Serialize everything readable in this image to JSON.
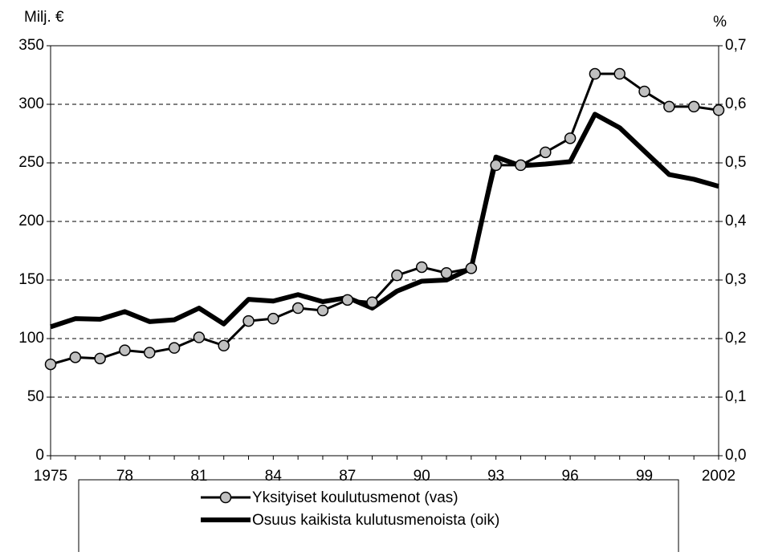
{
  "chart_data": {
    "type": "line",
    "y_label": "Milj. €",
    "y2_label": "%",
    "categories": [
      "1975",
      null,
      null,
      "78",
      null,
      null,
      "81",
      null,
      null,
      "84",
      null,
      null,
      "87",
      null,
      null,
      "90",
      null,
      null,
      "93",
      null,
      null,
      "96",
      null,
      null,
      "99",
      null,
      null,
      "2002"
    ],
    "series": [
      {
        "name": "Yksityiset koulutusmenot (vas)",
        "color": "#000000",
        "marker_color": "#c0c0c0",
        "axis": "y",
        "values": [
          78,
          84,
          83,
          90,
          88,
          92,
          101,
          94,
          115,
          117,
          126,
          124,
          133,
          131,
          154,
          161,
          156,
          160,
          248,
          248,
          259,
          271,
          326,
          326,
          311,
          298,
          298,
          295
        ]
      },
      {
        "name": "Osuus kaikista kulutusmenoista (oik)",
        "color": "#000000",
        "axis": "y2",
        "values": [
          0.22,
          0.234,
          0.233,
          0.246,
          0.229,
          0.232,
          0.252,
          0.225,
          0.267,
          0.264,
          0.275,
          0.263,
          0.27,
          0.252,
          0.281,
          0.298,
          0.3,
          0.32,
          0.51,
          0.495,
          0.498,
          0.502,
          0.583,
          0.56,
          0.52,
          0.48,
          0.472,
          0.46
        ]
      }
    ],
    "ylim": [
      0,
      350
    ],
    "yticks": [
      0,
      50,
      100,
      150,
      200,
      250,
      300,
      350
    ],
    "y2lim": [
      0,
      0.7
    ],
    "y2ticks": [
      {
        "value": 0,
        "label": "0,0"
      },
      {
        "value": 0.1,
        "label": "0,1"
      },
      {
        "value": 0.2,
        "label": "0,2"
      },
      {
        "value": 0.3,
        "label": "0,3"
      },
      {
        "value": 0.4,
        "label": "0,4"
      },
      {
        "value": 0.5,
        "label": "0,5"
      },
      {
        "value": 0.6,
        "label": "0,6"
      },
      {
        "value": 0.7,
        "label": "0,7"
      }
    ],
    "grid": true,
    "legend": "bottom"
  }
}
